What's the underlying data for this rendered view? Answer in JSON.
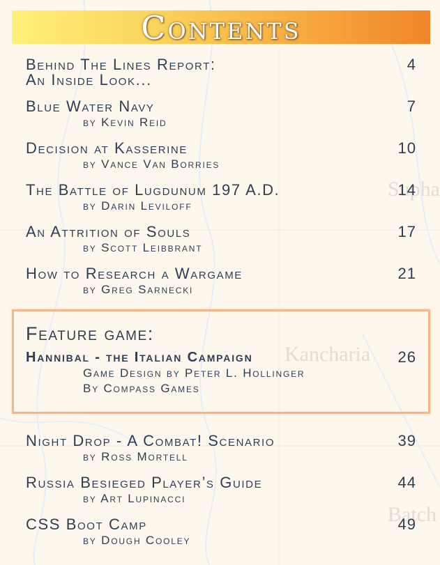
{
  "header": {
    "title": "Contents"
  },
  "map_labels": [
    "Supha",
    "Kancharia",
    "Batch"
  ],
  "entries": [
    {
      "title": "Behind The Lines Report:",
      "title_2": "An Inside Look...",
      "page": 4
    },
    {
      "title": "Blue Water Navy",
      "byline": "by Kevin Reid",
      "page": 7
    },
    {
      "title": "Decision at Kasserine",
      "byline": "by Vance Van Borries",
      "page": 10
    },
    {
      "title": "The Battle of Lugdunum 197 A.D.",
      "byline": "by Darin Leviloff",
      "page": 14
    },
    {
      "title": "An Attrition of Souls",
      "byline": "by Scott Leibbrant",
      "page": 17
    },
    {
      "title": "How to Research a Wargame",
      "byline": "by Greg Sarnecki",
      "page": 21
    }
  ],
  "feature": {
    "heading": "Feature game:",
    "title": "Hannibal - the Italian Campaign",
    "lines": [
      "Game Design by Peter L. Hollinger",
      "By Compass Games"
    ],
    "page": 26
  },
  "entries_after": [
    {
      "title": "Night Drop - A Combat! Scenario",
      "byline": "by Ross Mortell",
      "page": 39
    },
    {
      "title": "Russia Besieged Player’s Guide",
      "byline": "by Art Lupinacci",
      "page": 44
    },
    {
      "title": "CSS Boot Camp",
      "byline": "by Dough Cooley",
      "page": 49
    }
  ]
}
